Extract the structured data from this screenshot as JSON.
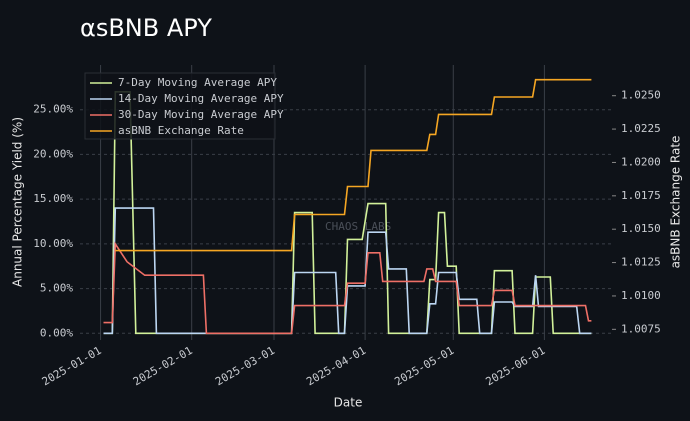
{
  "chart_data": {
    "type": "line",
    "title": "αsBNB APY",
    "xlabel": "Date",
    "ylabel": "Annual Percentage Yield (%)",
    "y2label": "asBNB Exchange Rate",
    "watermark": "CHAOS LABS",
    "xlim": [
      "2024-12-25",
      "2025-06-24"
    ],
    "xticks": [
      "2025-01-01",
      "2025-02-01",
      "2025-03-01",
      "2025-04-01",
      "2025-05-01",
      "2025-06-01"
    ],
    "ylim": [
      -0.75,
      30
    ],
    "yticks": [
      {
        "value": 0,
        "label": "0.00%"
      },
      {
        "value": 5,
        "label": "5.00%"
      },
      {
        "value": 10,
        "label": "10.00%"
      },
      {
        "value": 15,
        "label": "15.00%"
      },
      {
        "value": 20,
        "label": "20.00%"
      },
      {
        "value": 25,
        "label": "25.00%"
      }
    ],
    "y2lim": [
      1.0067,
      1.0273
    ],
    "y2ticks": [
      {
        "value": 1.0075,
        "label": "1.0075"
      },
      {
        "value": 1.01,
        "label": "1.0100"
      },
      {
        "value": 1.0125,
        "label": "1.0125"
      },
      {
        "value": 1.015,
        "label": "1.0150"
      },
      {
        "value": 1.0175,
        "label": "1.0175"
      },
      {
        "value": 1.02,
        "label": "1.0200"
      },
      {
        "value": 1.0225,
        "label": "1.0225"
      },
      {
        "value": 1.025,
        "label": "1.0250"
      }
    ],
    "grid": true,
    "legend": "upper left",
    "series": [
      {
        "name": "7-Day Moving Average APY",
        "color": "#d2f19a",
        "axis": "y",
        "x": [
          "2025-01-02",
          "2025-01-05",
          "2025-01-06",
          "2025-01-11",
          "2025-01-13",
          "2025-03-07",
          "2025-03-08",
          "2025-03-14",
          "2025-03-15",
          "2025-03-25",
          "2025-03-26",
          "2025-03-31",
          "2025-04-02",
          "2025-04-08",
          "2025-04-09",
          "2025-04-22",
          "2025-04-23",
          "2025-04-25",
          "2025-04-26",
          "2025-04-28",
          "2025-04-29",
          "2025-05-02",
          "2025-05-03",
          "2025-05-14",
          "2025-05-15",
          "2025-05-21",
          "2025-05-22",
          "2025-05-28",
          "2025-05-29",
          "2025-06-03",
          "2025-06-04",
          "2025-06-17"
        ],
        "values": [
          0,
          0,
          27,
          27,
          0,
          0,
          13.5,
          13.5,
          0,
          0,
          10.5,
          10.5,
          14.5,
          14.5,
          0,
          0,
          6,
          6,
          13.5,
          13.5,
          7.5,
          7.5,
          0,
          0,
          7,
          7,
          0,
          0,
          6.3,
          6.3,
          0,
          0
        ]
      },
      {
        "name": "14-Day Moving Average APY",
        "color": "#bcd6f2",
        "axis": "y",
        "x": [
          "2025-01-02",
          "2025-01-05",
          "2025-01-06",
          "2025-01-19",
          "2025-01-20",
          "2025-03-07",
          "2025-03-08",
          "2025-03-22",
          "2025-03-23",
          "2025-03-25",
          "2025-03-26",
          "2025-04-01",
          "2025-04-02",
          "2025-04-08",
          "2025-04-09",
          "2025-04-15",
          "2025-04-16",
          "2025-04-22",
          "2025-04-23",
          "2025-04-25",
          "2025-04-26",
          "2025-05-02",
          "2025-05-03",
          "2025-05-09",
          "2025-05-10",
          "2025-05-14",
          "2025-05-15",
          "2025-05-21",
          "2025-05-22",
          "2025-05-28",
          "2025-05-29",
          "2025-05-30",
          "2025-06-12",
          "2025-06-13",
          "2025-06-17"
        ],
        "values": [
          0,
          0,
          14,
          14,
          0,
          0,
          6.8,
          6.8,
          0,
          0,
          5.3,
          5.3,
          11.3,
          11.3,
          7.2,
          7.2,
          0,
          0,
          3.3,
          3.3,
          6.8,
          6.8,
          3.8,
          3.8,
          0,
          0,
          3.5,
          3.5,
          3,
          3,
          6.5,
          3,
          3,
          0,
          0
        ]
      },
      {
        "name": "30-Day Moving Average APY",
        "color": "#ee6f66",
        "axis": "y",
        "x": [
          "2025-01-02",
          "2025-01-05",
          "2025-01-06",
          "2025-01-10",
          "2025-01-16",
          "2025-02-05",
          "2025-02-06",
          "2025-03-07",
          "2025-03-08",
          "2025-03-25",
          "2025-03-26",
          "2025-04-01",
          "2025-04-02",
          "2025-04-06",
          "2025-04-07",
          "2025-04-21",
          "2025-04-22",
          "2025-04-24",
          "2025-04-25",
          "2025-05-02",
          "2025-05-03",
          "2025-05-14",
          "2025-05-15",
          "2025-05-21",
          "2025-05-22",
          "2025-06-15",
          "2025-06-16",
          "2025-06-17"
        ],
        "values": [
          1.2,
          1.2,
          10,
          8,
          6.5,
          6.5,
          0,
          0,
          3.1,
          3.1,
          5.6,
          5.6,
          9,
          9,
          5.8,
          5.8,
          7.2,
          7.2,
          5.8,
          5.8,
          3.1,
          3.1,
          4.8,
          4.8,
          3.1,
          3.1,
          1.4,
          1.4
        ]
      },
      {
        "name": "asBNB Exchange Rate",
        "color": "#f5a623",
        "axis": "y2",
        "x": [
          "2025-01-06",
          "2025-03-07",
          "2025-03-08",
          "2025-03-25",
          "2025-03-26",
          "2025-04-02",
          "2025-04-03",
          "2025-04-22",
          "2025-04-23",
          "2025-04-25",
          "2025-04-26",
          "2025-05-14",
          "2025-05-15",
          "2025-05-28",
          "2025-05-29",
          "2025-06-17"
        ],
        "values": [
          1.0134,
          1.0134,
          1.0161,
          1.0161,
          1.0182,
          1.0182,
          1.0209,
          1.0209,
          1.0221,
          1.0221,
          1.0236,
          1.0236,
          1.0249,
          1.0249,
          1.0262,
          1.0262
        ]
      }
    ]
  }
}
